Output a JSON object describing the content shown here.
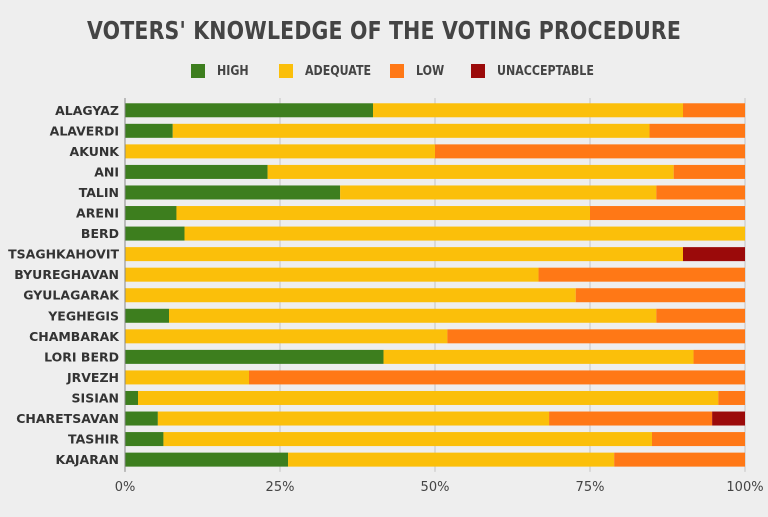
{
  "chart_data": {
    "type": "bar",
    "orientation": "horizontal",
    "stacked": true,
    "title": "VOTERS' KNOWLEDGE OF THE VOTING PROCEDURE",
    "categories": [
      "ALAGYAZ",
      "ALAVERDI",
      "AKUNK",
      "ANI",
      "TALIN",
      "ARENI",
      "BERD",
      "TSAGHKAHOVIT",
      "BYUREGHAVAN",
      "GYULAGARAK",
      "YEGHEGIS",
      "CHAMBARAK",
      "LORI BERD",
      "JRVEZH",
      "SISIAN",
      "CHARETSAVAN",
      "TASHIR",
      "KAJARAN"
    ],
    "series": [
      {
        "name": "HIGH",
        "color": "#3d7e1e",
        "values": [
          40,
          7.7,
          0,
          23,
          34.7,
          8.3,
          9.6,
          0,
          0,
          0,
          7.1,
          0,
          41.7,
          0,
          2.1,
          5.3,
          6.2,
          26.3
        ]
      },
      {
        "name": "ADEQUATE",
        "color": "#fbbf0a",
        "values": [
          50,
          76.9,
          50,
          65.5,
          51,
          66.7,
          90.4,
          90,
          66.7,
          72.7,
          78.6,
          52,
          50,
          20,
          93.6,
          63.1,
          78.8,
          52.6
        ]
      },
      {
        "name": "LOW",
        "color": "#ff7816",
        "values": [
          10,
          15.4,
          50,
          11.5,
          14.3,
          25,
          0,
          0,
          33.3,
          27.3,
          14.3,
          48,
          8.3,
          80,
          4.3,
          26.3,
          15,
          21.1
        ]
      },
      {
        "name": "UNACCEPTABLE",
        "color": "#9b0a0a",
        "values": [
          0,
          0,
          0,
          0,
          0,
          0,
          0,
          10,
          0,
          0,
          0,
          0,
          0,
          0,
          0,
          5.3,
          0,
          0
        ]
      }
    ],
    "xlim": [
      0,
      100
    ],
    "xticks": [
      "0%",
      "25%",
      "50%",
      "75%",
      "100%"
    ],
    "grid": true,
    "legend_position": "top"
  }
}
